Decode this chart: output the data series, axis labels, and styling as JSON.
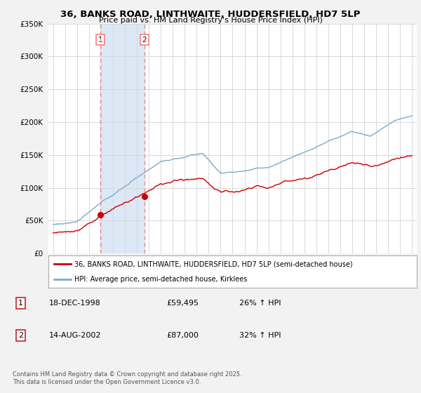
{
  "title": "36, BANKS ROAD, LINTHWAITE, HUDDERSFIELD, HD7 5LP",
  "subtitle": "Price paid vs. HM Land Registry's House Price Index (HPI)",
  "red_label": "36, BANKS ROAD, LINTHWAITE, HUDDERSFIELD, HD7 5LP (semi-detached house)",
  "blue_label": "HPI: Average price, semi-detached house, Kirklees",
  "transaction1_num": "1",
  "transaction1_date": "18-DEC-1998",
  "transaction1_price": "£59,495",
  "transaction1_hpi": "26% ↑ HPI",
  "transaction1_year": 1998.96,
  "transaction1_value": 59495,
  "transaction2_num": "2",
  "transaction2_date": "14-AUG-2002",
  "transaction2_price": "£87,000",
  "transaction2_hpi": "32% ↑ HPI",
  "transaction2_year": 2002.62,
  "transaction2_value": 87000,
  "ylim": [
    0,
    350000
  ],
  "yticks": [
    0,
    50000,
    100000,
    150000,
    200000,
    250000,
    300000,
    350000
  ],
  "footer": "Contains HM Land Registry data © Crown copyright and database right 2025.\nThis data is licensed under the Open Government Licence v3.0.",
  "background_color": "#f2f2f2",
  "plot_background": "#ffffff",
  "red_color": "#cc0000",
  "blue_color": "#7aadcc",
  "vline_color": "#ee8888",
  "span_color": "#dce8f5",
  "marker_color": "#cc0000"
}
